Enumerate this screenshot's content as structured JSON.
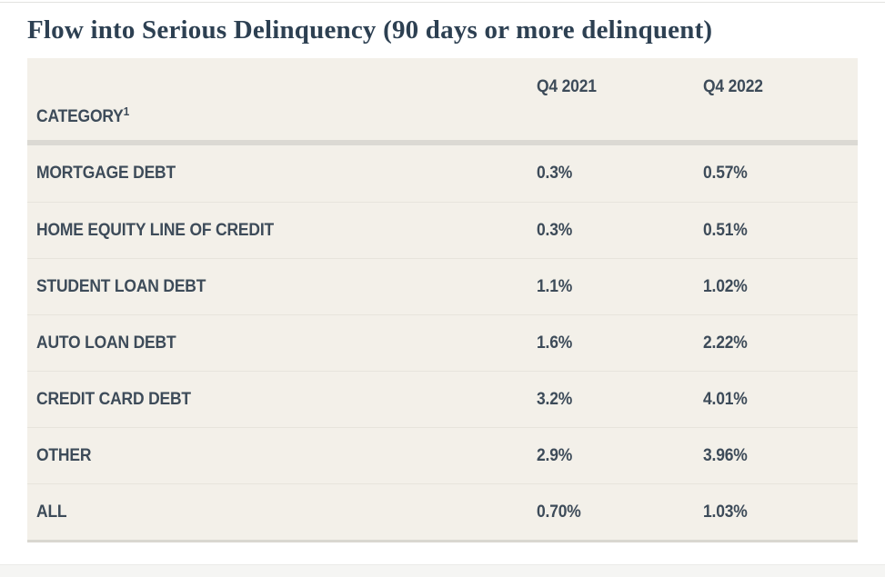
{
  "title": "Flow into Serious Delinquency (90 days or more delinquent)",
  "table": {
    "category_header": "CATEGORY",
    "category_footnote": "1",
    "columns": [
      "Q4 2021",
      "Q4 2022"
    ],
    "rows": [
      {
        "category": "MORTGAGE DEBT",
        "q4_2021": "0.3%",
        "q4_2022": "0.57%"
      },
      {
        "category": "HOME EQUITY LINE OF CREDIT",
        "q4_2021": "0.3%",
        "q4_2022": "0.51%"
      },
      {
        "category": "STUDENT LOAN DEBT",
        "q4_2021": "1.1%",
        "q4_2022": "1.02%"
      },
      {
        "category": "AUTO LOAN DEBT",
        "q4_2021": "1.6%",
        "q4_2022": "2.22%"
      },
      {
        "category": "CREDIT CARD DEBT",
        "q4_2021": "3.2%",
        "q4_2022": "4.01%"
      },
      {
        "category": "OTHER",
        "q4_2021": "2.9%",
        "q4_2022": "3.96%"
      },
      {
        "category": "ALL",
        "q4_2021": "0.70%",
        "q4_2022": "1.03%"
      }
    ]
  },
  "colors": {
    "table_background": "#f3f0e9",
    "title_text": "#2d4052",
    "cell_text": "#3d4b59",
    "header_divider": "#dbd9d3",
    "row_divider": "#e7e4dc"
  },
  "chart_data": {
    "type": "table",
    "title": "Flow into Serious Delinquency (90 days or more delinquent)",
    "columns": [
      "CATEGORY",
      "Q4 2021",
      "Q4 2022"
    ],
    "rows": [
      [
        "MORTGAGE DEBT",
        "0.3%",
        "0.57%"
      ],
      [
        "HOME EQUITY LINE OF CREDIT",
        "0.3%",
        "0.51%"
      ],
      [
        "STUDENT LOAN DEBT",
        "1.1%",
        "1.02%"
      ],
      [
        "AUTO LOAN DEBT",
        "1.6%",
        "2.22%"
      ],
      [
        "CREDIT CARD DEBT",
        "3.2%",
        "4.01%"
      ],
      [
        "OTHER",
        "2.9%",
        "3.96%"
      ],
      [
        "ALL",
        "0.70%",
        "1.03%"
      ]
    ],
    "footnote_marker_on": "CATEGORY"
  }
}
